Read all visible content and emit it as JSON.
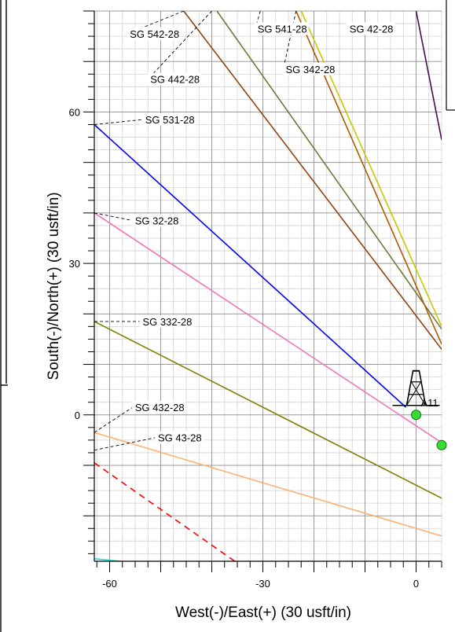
{
  "chart_data": {
    "type": "line",
    "xlabel": "West(-)/East(+) (30 usft/in)",
    "ylabel": "South(-)/North(+) (30 usft/in)",
    "xlim": [
      -63,
      5
    ],
    "ylim": [
      -29,
      80
    ],
    "xticks": [
      {
        "value": -60,
        "label": "-60"
      },
      {
        "value": -30,
        "label": "-30"
      },
      {
        "value": 0,
        "label": "0"
      }
    ],
    "yticks": [
      {
        "value": 0,
        "label": "0"
      },
      {
        "value": 30,
        "label": "30"
      },
      {
        "value": 60,
        "label": "60"
      }
    ],
    "grid": true,
    "series": [
      {
        "name": "SG 531-28",
        "color": "#0000ff",
        "dash": "",
        "x": [
          -63,
          -2
        ],
        "y": [
          57.5,
          1.5
        ]
      },
      {
        "name": "SG 32-28",
        "color": "#ee77bb",
        "dash": "",
        "x": [
          -63,
          5
        ],
        "y": [
          40,
          -5.5
        ]
      },
      {
        "name": "SG 332-28",
        "color": "#7f7f00",
        "dash": "",
        "x": [
          -63,
          5
        ],
        "y": [
          18.5,
          -16.5
        ]
      },
      {
        "name": "SG 432-28",
        "color": "#ffb070",
        "dash": "",
        "x": [
          -63,
          5
        ],
        "y": [
          -3.5,
          -24
        ]
      },
      {
        "name": "",
        "color": "#ff0000",
        "dash": "8,6",
        "x": [
          -63,
          -35.5
        ],
        "y": [
          -9.5,
          -29
        ]
      },
      {
        "name": "",
        "color": "#22dddd",
        "dash": "",
        "x": [
          -63,
          -58
        ],
        "y": [
          -28.5,
          -29
        ]
      },
      {
        "name": "SG 442-28",
        "color": "#8b4513",
        "dash": "",
        "x": [
          -45.5,
          5
        ],
        "y": [
          80,
          13
        ]
      },
      {
        "name": "SG 541-28",
        "color": "#6b7b3b",
        "dash": "",
        "x": [
          -39,
          5
        ],
        "y": [
          80,
          17
        ]
      },
      {
        "name": "SG 342-28",
        "color": "#b05a00",
        "dash": "",
        "x": [
          -23.5,
          5
        ],
        "y": [
          80,
          14
        ]
      },
      {
        "name": "SG 42-28",
        "color": "#c8c800",
        "dash": "",
        "x": [
          -22.5,
          5
        ],
        "y": [
          80,
          17.5
        ]
      },
      {
        "name": "",
        "color": "#4b0b4b",
        "dash": "",
        "x": [
          0,
          5
        ],
        "y": [
          80,
          54.5
        ]
      }
    ],
    "well_labels": [
      {
        "text": "SG 542-28",
        "x": -45.5,
        "y": 80,
        "lx": -56.5,
        "ly": 75.5
      },
      {
        "text": "SG 442-28",
        "x": -40,
        "y": 80,
        "lx": -52.5,
        "ly": 66.5
      },
      {
        "text": "SG 541-28",
        "x": -30.5,
        "y": 80,
        "lx": -31.5,
        "ly": 76.5
      },
      {
        "text": "SG 342-28",
        "x": -23.5,
        "y": 80,
        "lx": -26,
        "ly": 68.5
      },
      {
        "text": "SG 42-28",
        "x": -10,
        "y": 76,
        "lx": -13.5,
        "ly": 76.5
      },
      {
        "text": "SG 531-28",
        "x": -63,
        "y": 57.5,
        "lx": -53.5,
        "ly": 58.5
      },
      {
        "text": "SG 32-28",
        "x": -63,
        "y": 40,
        "lx": -55.5,
        "ly": 38.5
      },
      {
        "text": "SG 332-28",
        "x": -63,
        "y": 18.5,
        "lx": -54,
        "ly": 18.5
      },
      {
        "text": "SG 432-28",
        "x": -63,
        "y": -3.5,
        "lx": -55.5,
        "ly": 1.5
      },
      {
        "text": "SG 43-28",
        "x": -63,
        "y": -7,
        "lx": -51,
        "ly": -4.5
      }
    ],
    "rig": {
      "x": 0,
      "y": 0,
      "label": "A11"
    },
    "targets": [
      {
        "x": 0,
        "y": 0,
        "color": "#33dd33"
      },
      {
        "x": 5,
        "y": -6,
        "color": "#33dd33"
      }
    ]
  }
}
